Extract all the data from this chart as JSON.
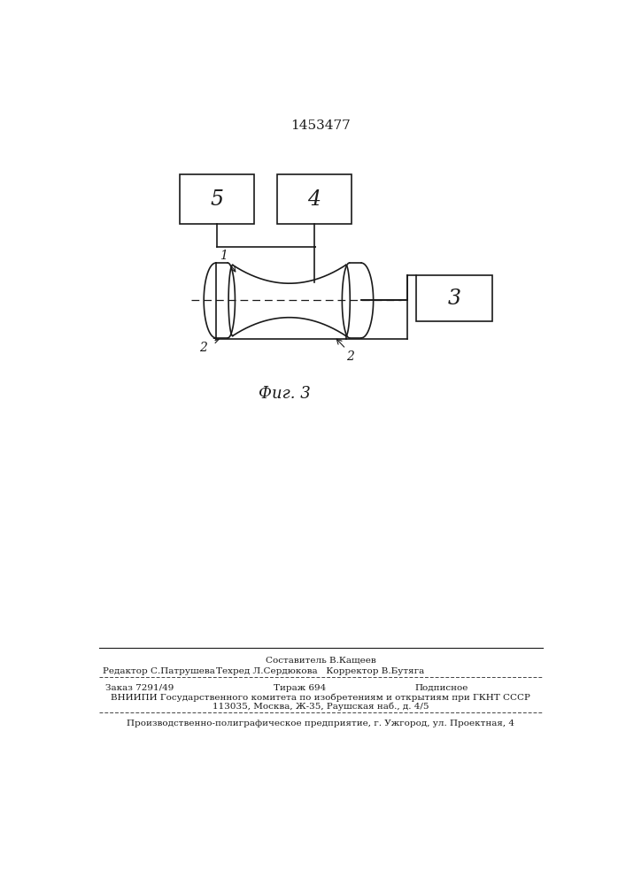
{
  "title": "1453477",
  "fig_label": "Фиг. 3",
  "bg_color": "#ffffff",
  "line_color": "#1a1a1a",
  "box5_label": "5",
  "box4_label": "4",
  "box3_label": "3",
  "label1": "1",
  "label2a": "2",
  "label2b": "2",
  "footer_sestavitel": "Составитель В.Кащеев",
  "footer_redaktor": "Редактор С.Патрушева",
  "footer_tehred": "Техред Л.Сердюкова   Корректор В.Бутяга",
  "footer_zakaz": "Заказ 7291/49",
  "footer_tirazh": "Тираж 694",
  "footer_podpisnoe": "Подписное",
  "footer_vniip1": "ВНИИПИ Государственного комитета по изобретениям и открытиям при ГКНТ СССР",
  "footer_vniip2": "113035, Москва, Ж-35, Раушская наб., д. 4/5",
  "footer_proizv": "Производственно-полиграфическое предприятие, г. Ужгород, ул. Проектная, 4"
}
